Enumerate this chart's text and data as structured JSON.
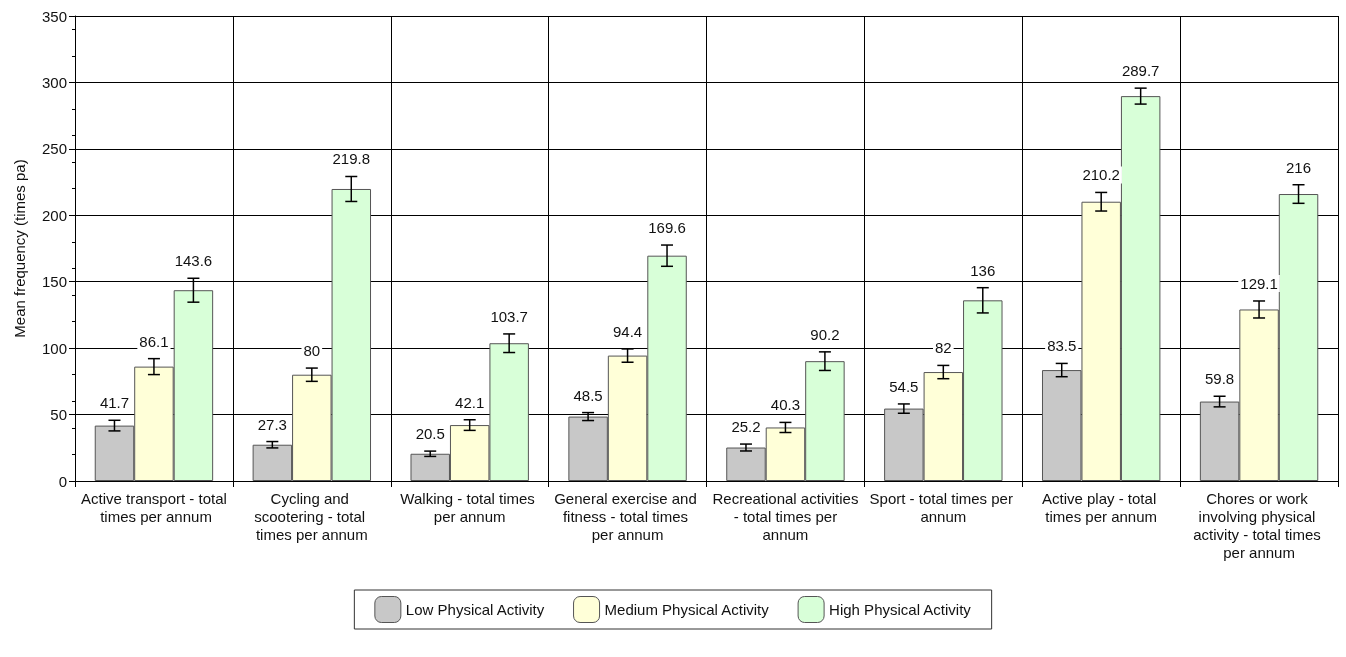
{
  "chart_data": {
    "type": "bar",
    "ylabel": "Mean frequency (times pa)",
    "categories": [
      "Active transport - total times per annum",
      "Cycling and scootering - total times per annum",
      "Walking - total times per annum",
      "General exercise and fitness - total times per annum",
      "Recreational activities - total times per annum",
      "Sport - total times per annum",
      "Active play - total times per annum",
      "Chores or work involving physical activity - total times per annum"
    ],
    "series": [
      {
        "name": "Low Physical Activity",
        "color": "#c8c8c8",
        "values": [
          41.7,
          27.3,
          20.5,
          48.5,
          25.2,
          54.5,
          83.5,
          59.8
        ],
        "errors": [
          4,
          2.4,
          2,
          3,
          2.6,
          3.5,
          5,
          4
        ]
      },
      {
        "name": "Medium Physical Activity",
        "color": "#ffffd8",
        "values": [
          86.1,
          80,
          42.1,
          94.4,
          40.3,
          82,
          210.2,
          129.1
        ],
        "errors": [
          6,
          5,
          4,
          5,
          3.8,
          5,
          7,
          6.4
        ]
      },
      {
        "name": "High Physical Activity",
        "color": "#d8ffd8",
        "values": [
          143.6,
          219.8,
          103.7,
          169.6,
          90.2,
          136,
          289.7,
          216
        ],
        "errors": [
          9,
          9.4,
          7,
          8,
          7,
          9.5,
          6,
          7
        ]
      }
    ],
    "ylim": [
      0,
      350
    ],
    "yticks": [
      0,
      50,
      100,
      150,
      200,
      250,
      300,
      350
    ],
    "grid": true,
    "legend": "bottom",
    "data_labels": true
  }
}
